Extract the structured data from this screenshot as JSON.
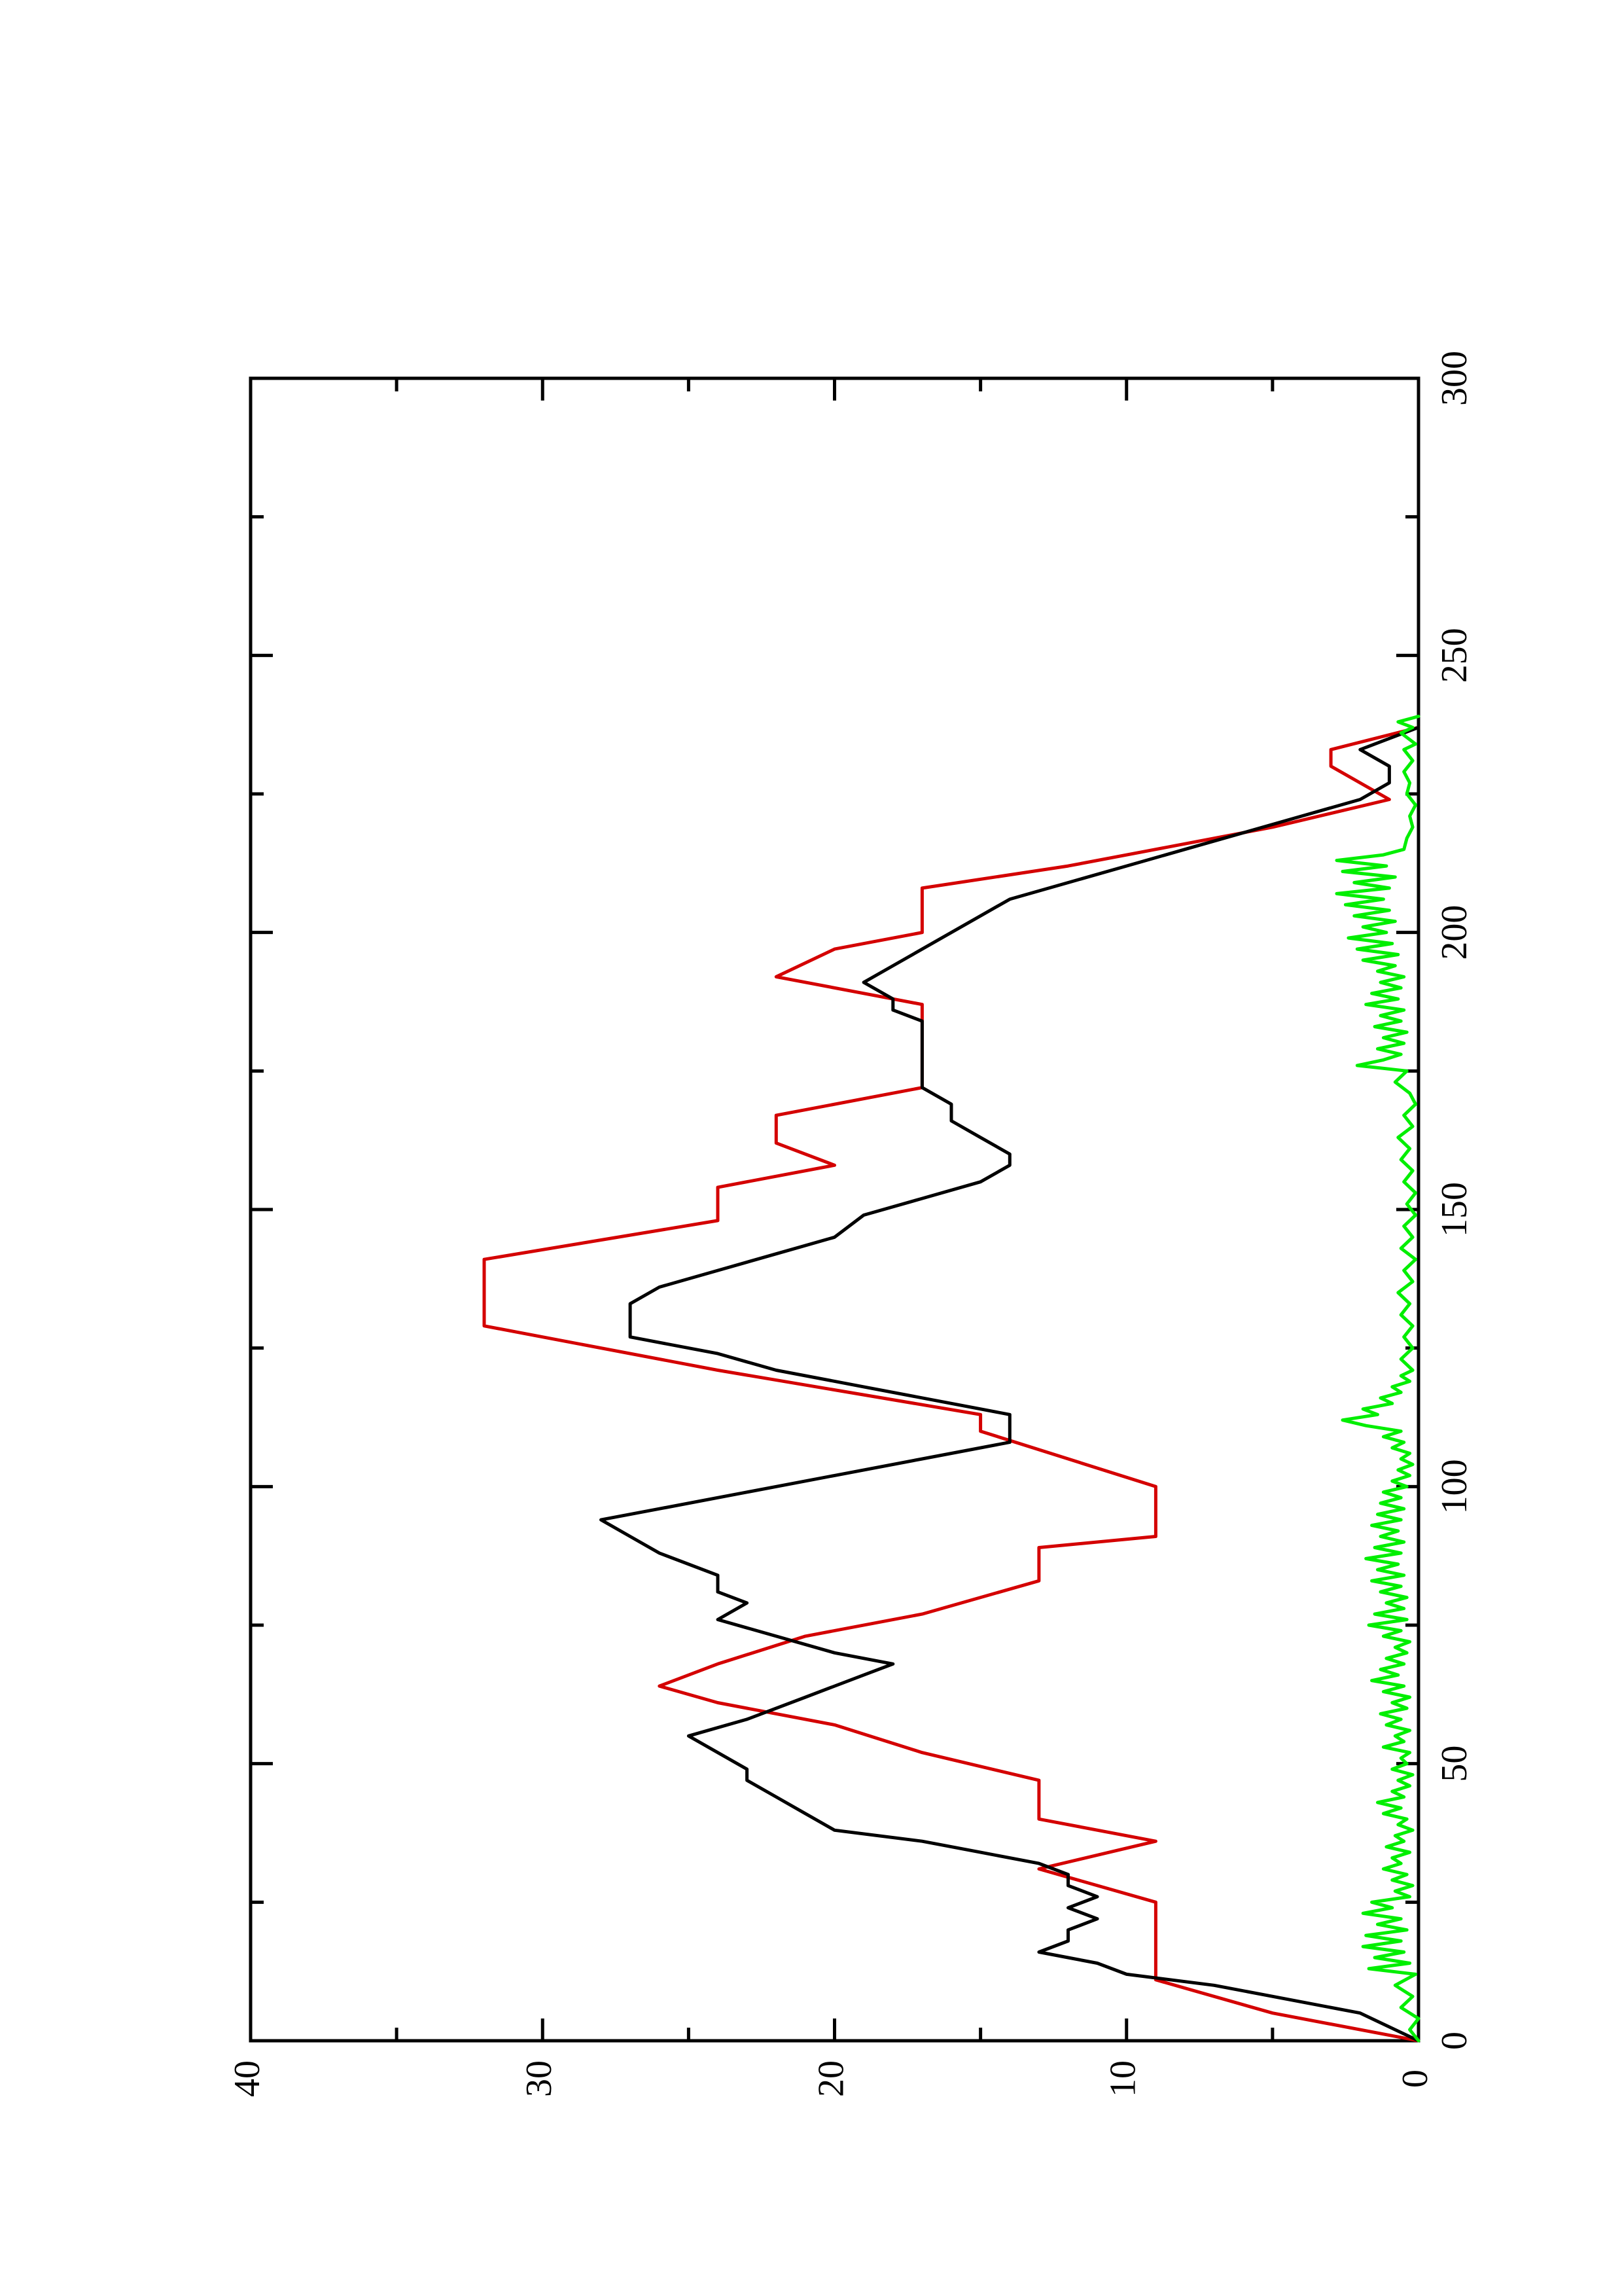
{
  "chart_data": {
    "type": "line",
    "title": "",
    "xlabel": "",
    "ylabel": "",
    "xlim": [
      0,
      300
    ],
    "ylim": [
      0,
      40
    ],
    "x_ticks": [
      0,
      50,
      100,
      150,
      200,
      250,
      300
    ],
    "x_tick_labels": [
      "0",
      "50",
      "100",
      "150",
      "200",
      "250",
      "300"
    ],
    "y_ticks": [
      0,
      10,
      20,
      30,
      40
    ],
    "y_tick_labels": [
      "0",
      "10",
      "20",
      "30",
      "40"
    ],
    "grid": false,
    "series": [
      {
        "color": "#d40000",
        "points": [
          [
            0,
            0
          ],
          [
            5,
            5
          ],
          [
            11,
            9
          ],
          [
            25,
            9
          ],
          [
            31,
            13
          ],
          [
            36,
            9
          ],
          [
            40,
            13
          ],
          [
            47,
            13
          ],
          [
            52,
            17
          ],
          [
            57,
            20
          ],
          [
            61,
            24
          ],
          [
            64,
            26
          ],
          [
            68,
            24
          ],
          [
            73,
            21
          ],
          [
            77,
            17
          ],
          [
            83,
            13
          ],
          [
            89,
            13
          ],
          [
            91,
            9
          ],
          [
            100,
            9
          ],
          [
            110,
            15
          ],
          [
            113,
            15
          ],
          [
            121,
            24
          ],
          [
            129,
            32
          ],
          [
            141,
            32
          ],
          [
            148,
            24
          ],
          [
            154,
            24
          ],
          [
            158,
            20
          ],
          [
            162,
            22
          ],
          [
            167,
            22
          ],
          [
            172,
            17
          ],
          [
            187,
            17
          ],
          [
            192,
            22
          ],
          [
            197,
            20
          ],
          [
            200,
            17
          ],
          [
            208,
            17
          ],
          [
            212,
            12
          ],
          [
            215,
            9
          ],
          [
            219,
            5
          ],
          [
            224,
            1
          ],
          [
            230,
            3
          ],
          [
            233,
            3
          ],
          [
            237,
            0
          ]
        ]
      },
      {
        "color": "#000000",
        "points": [
          [
            0,
            0
          ],
          [
            5,
            2
          ],
          [
            10,
            7
          ],
          [
            12,
            10
          ],
          [
            14,
            11
          ],
          [
            15,
            12
          ],
          [
            16,
            13
          ],
          [
            18,
            12
          ],
          [
            20,
            12
          ],
          [
            22,
            11
          ],
          [
            24,
            12
          ],
          [
            26,
            11
          ],
          [
            28,
            12
          ],
          [
            30,
            12
          ],
          [
            32,
            13
          ],
          [
            34,
            15
          ],
          [
            36,
            17
          ],
          [
            38,
            20
          ],
          [
            41,
            21
          ],
          [
            44,
            22
          ],
          [
            47,
            23
          ],
          [
            49,
            23
          ],
          [
            52,
            24
          ],
          [
            55,
            25
          ],
          [
            58,
            23
          ],
          [
            62,
            21
          ],
          [
            66,
            19
          ],
          [
            68,
            18
          ],
          [
            70,
            20
          ],
          [
            73,
            22
          ],
          [
            76,
            24
          ],
          [
            79,
            23
          ],
          [
            81,
            24
          ],
          [
            84,
            24
          ],
          [
            86,
            25
          ],
          [
            88,
            26
          ],
          [
            91,
            27
          ],
          [
            94,
            28
          ],
          [
            96,
            26
          ],
          [
            99,
            23
          ],
          [
            102,
            20
          ],
          [
            105,
            17
          ],
          [
            108,
            14
          ],
          [
            110,
            14
          ],
          [
            113,
            14
          ],
          [
            115,
            16
          ],
          [
            118,
            19
          ],
          [
            121,
            22
          ],
          [
            124,
            24
          ],
          [
            127,
            27
          ],
          [
            130,
            27
          ],
          [
            133,
            27
          ],
          [
            136,
            26
          ],
          [
            139,
            24
          ],
          [
            142,
            22
          ],
          [
            145,
            20
          ],
          [
            149,
            19
          ],
          [
            152,
            17
          ],
          [
            155,
            15
          ],
          [
            158,
            14
          ],
          [
            160,
            14
          ],
          [
            163,
            15
          ],
          [
            166,
            16
          ],
          [
            169,
            16
          ],
          [
            172,
            17
          ],
          [
            175,
            17
          ],
          [
            178,
            17
          ],
          [
            181,
            17
          ],
          [
            184,
            17
          ],
          [
            186,
            18
          ],
          [
            188,
            18
          ],
          [
            191,
            19
          ],
          [
            194,
            18
          ],
          [
            197,
            17
          ],
          [
            200,
            16
          ],
          [
            203,
            15
          ],
          [
            206,
            14
          ],
          [
            209,
            12
          ],
          [
            212,
            10
          ],
          [
            215,
            8
          ],
          [
            218,
            6
          ],
          [
            221,
            4
          ],
          [
            224,
            2
          ],
          [
            227,
            1
          ],
          [
            230,
            1
          ],
          [
            233,
            2
          ],
          [
            235,
            1
          ],
          [
            237,
            0
          ]
        ]
      },
      {
        "color": "#00ee00",
        "points": [
          [
            0,
            0
          ],
          [
            2,
            0.3
          ],
          [
            4,
            0
          ],
          [
            6,
            0.6
          ],
          [
            8,
            0.2
          ],
          [
            10,
            0.8
          ],
          [
            12,
            0.1
          ],
          [
            13,
            1.7
          ],
          [
            14,
            0.3
          ],
          [
            15,
            1.5
          ],
          [
            16,
            0.5
          ],
          [
            17,
            1.9
          ],
          [
            18,
            0.6
          ],
          [
            19,
            1.8
          ],
          [
            20,
            0.4
          ],
          [
            21,
            1.4
          ],
          [
            22,
            0.6
          ],
          [
            23,
            1.9
          ],
          [
            24,
            0.9
          ],
          [
            25,
            1.6
          ],
          [
            26,
            0.3
          ],
          [
            27,
            0.8
          ],
          [
            28,
            0.2
          ],
          [
            29,
            0.9
          ],
          [
            30,
            0.4
          ],
          [
            31,
            1.2
          ],
          [
            32,
            0.6
          ],
          [
            33,
            0.9
          ],
          [
            34,
            0.3
          ],
          [
            35,
            1.1
          ],
          [
            36,
            0.5
          ],
          [
            37,
            0.8
          ],
          [
            38,
            0.2
          ],
          [
            39,
            0.7
          ],
          [
            40,
            0.4
          ],
          [
            41,
            1.2
          ],
          [
            42,
            0.6
          ],
          [
            43,
            1.4
          ],
          [
            44,
            0.5
          ],
          [
            45,
            0.9
          ],
          [
            46,
            0.3
          ],
          [
            47,
            0.7
          ],
          [
            48,
            0.2
          ],
          [
            49,
            0.9
          ],
          [
            50,
            0.4
          ],
          [
            51,
            0.6
          ],
          [
            52,
            0.3
          ],
          [
            53,
            1.2
          ],
          [
            54,
            0.5
          ],
          [
            55,
            0.8
          ],
          [
            56,
            0.3
          ],
          [
            57,
            1.1
          ],
          [
            58,
            0.6
          ],
          [
            59,
            1.3
          ],
          [
            60,
            0.4
          ],
          [
            61,
            0.9
          ],
          [
            62,
            0.3
          ],
          [
            63,
            1.2
          ],
          [
            64,
            0.5
          ],
          [
            65,
            1.6
          ],
          [
            66,
            0.7
          ],
          [
            67,
            1.3
          ],
          [
            68,
            0.5
          ],
          [
            69,
            1.1
          ],
          [
            70,
            0.4
          ],
          [
            71,
            0.8
          ],
          [
            72,
            0.3
          ],
          [
            73,
            1.2
          ],
          [
            74,
            0.6
          ],
          [
            75,
            1.7
          ],
          [
            76,
            0.4
          ],
          [
            77,
            1.5
          ],
          [
            78,
            0.5
          ],
          [
            79,
            1.1
          ],
          [
            80,
            0.4
          ],
          [
            81,
            1.3
          ],
          [
            82,
            0.6
          ],
          [
            83,
            1.6
          ],
          [
            84,
            0.5
          ],
          [
            85,
            1.4
          ],
          [
            86,
            0.7
          ],
          [
            87,
            1.8
          ],
          [
            88,
            0.6
          ],
          [
            89,
            1.5
          ],
          [
            90,
            0.5
          ],
          [
            91,
            1.3
          ],
          [
            92,
            0.7
          ],
          [
            93,
            1.6
          ],
          [
            94,
            0.6
          ],
          [
            95,
            1.4
          ],
          [
            96,
            0.5
          ],
          [
            97,
            1.3
          ],
          [
            98,
            0.6
          ],
          [
            99,
            1.2
          ],
          [
            100,
            0.4
          ],
          [
            101,
            0.9
          ],
          [
            102,
            0.3
          ],
          [
            103,
            0.7
          ],
          [
            104,
            0.2
          ],
          [
            105,
            0.6
          ],
          [
            106,
            0.3
          ],
          [
            107,
            0.9
          ],
          [
            108,
            0.5
          ],
          [
            109,
            1.2
          ],
          [
            110,
            0.6
          ],
          [
            111,
            1.8
          ],
          [
            112,
            2.6
          ],
          [
            113,
            1.4
          ],
          [
            114,
            1.9
          ],
          [
            115,
            0.9
          ],
          [
            116,
            1.3
          ],
          [
            117,
            0.6
          ],
          [
            118,
            0.9
          ],
          [
            119,
            0.3
          ],
          [
            120,
            0.6
          ],
          [
            121,
            0.2
          ],
          [
            123,
            0.6
          ],
          [
            125,
            0.2
          ],
          [
            127,
            0.5
          ],
          [
            129,
            0.2
          ],
          [
            131,
            0.6
          ],
          [
            133,
            0.3
          ],
          [
            135,
            0.7
          ],
          [
            137,
            0.2
          ],
          [
            139,
            0.5
          ],
          [
            141,
            0.1
          ],
          [
            143,
            0.6
          ],
          [
            145,
            0.2
          ],
          [
            147,
            0.5
          ],
          [
            149,
            0.1
          ],
          [
            151,
            0.4
          ],
          [
            153,
            0.1
          ],
          [
            155,
            0.5
          ],
          [
            157,
            0.2
          ],
          [
            159,
            0.6
          ],
          [
            161,
            0.3
          ],
          [
            163,
            0.7
          ],
          [
            165,
            0.2
          ],
          [
            167,
            0.5
          ],
          [
            169,
            0.1
          ],
          [
            171,
            0.3
          ],
          [
            173,
            0.8
          ],
          [
            175,
            0.4
          ],
          [
            176,
            2.1
          ],
          [
            177,
            1.2
          ],
          [
            178,
            0.6
          ],
          [
            179,
            1.4
          ],
          [
            180,
            0.5
          ],
          [
            181,
            1.2
          ],
          [
            182,
            0.4
          ],
          [
            183,
            1.5
          ],
          [
            184,
            0.6
          ],
          [
            185,
            1.3
          ],
          [
            186,
            0.5
          ],
          [
            187,
            1.8
          ],
          [
            188,
            0.7
          ],
          [
            189,
            1.6
          ],
          [
            190,
            0.6
          ],
          [
            191,
            1.3
          ],
          [
            192,
            0.5
          ],
          [
            193,
            1.4
          ],
          [
            194,
            0.8
          ],
          [
            195,
            1.9
          ],
          [
            196,
            0.7
          ],
          [
            197,
            2.1
          ],
          [
            198,
            0.9
          ],
          [
            199,
            2.4
          ],
          [
            200,
            1.1
          ],
          [
            201,
            1.9
          ],
          [
            202,
            0.8
          ],
          [
            203,
            2.2
          ],
          [
            204,
            1.0
          ],
          [
            205,
            2.5
          ],
          [
            206,
            1.2
          ],
          [
            207,
            2.8
          ],
          [
            208,
            1.0
          ],
          [
            209,
            2.2
          ],
          [
            210,
            0.8
          ],
          [
            211,
            2.6
          ],
          [
            212,
            1.1
          ],
          [
            213,
            2.8
          ],
          [
            214,
            1.2
          ],
          [
            215,
            0.5
          ],
          [
            217,
            0.4
          ],
          [
            219,
            0.2
          ],
          [
            221,
            0.3
          ],
          [
            223,
            0.1
          ],
          [
            225,
            0.4
          ],
          [
            227,
            0.3
          ],
          [
            229,
            0.5
          ],
          [
            231,
            0.2
          ],
          [
            233,
            0.5
          ],
          [
            234,
            0.1
          ],
          [
            236,
            0.6
          ],
          [
            237,
            0.2
          ],
          [
            238,
            0.7
          ],
          [
            239,
            0
          ]
        ]
      }
    ]
  }
}
